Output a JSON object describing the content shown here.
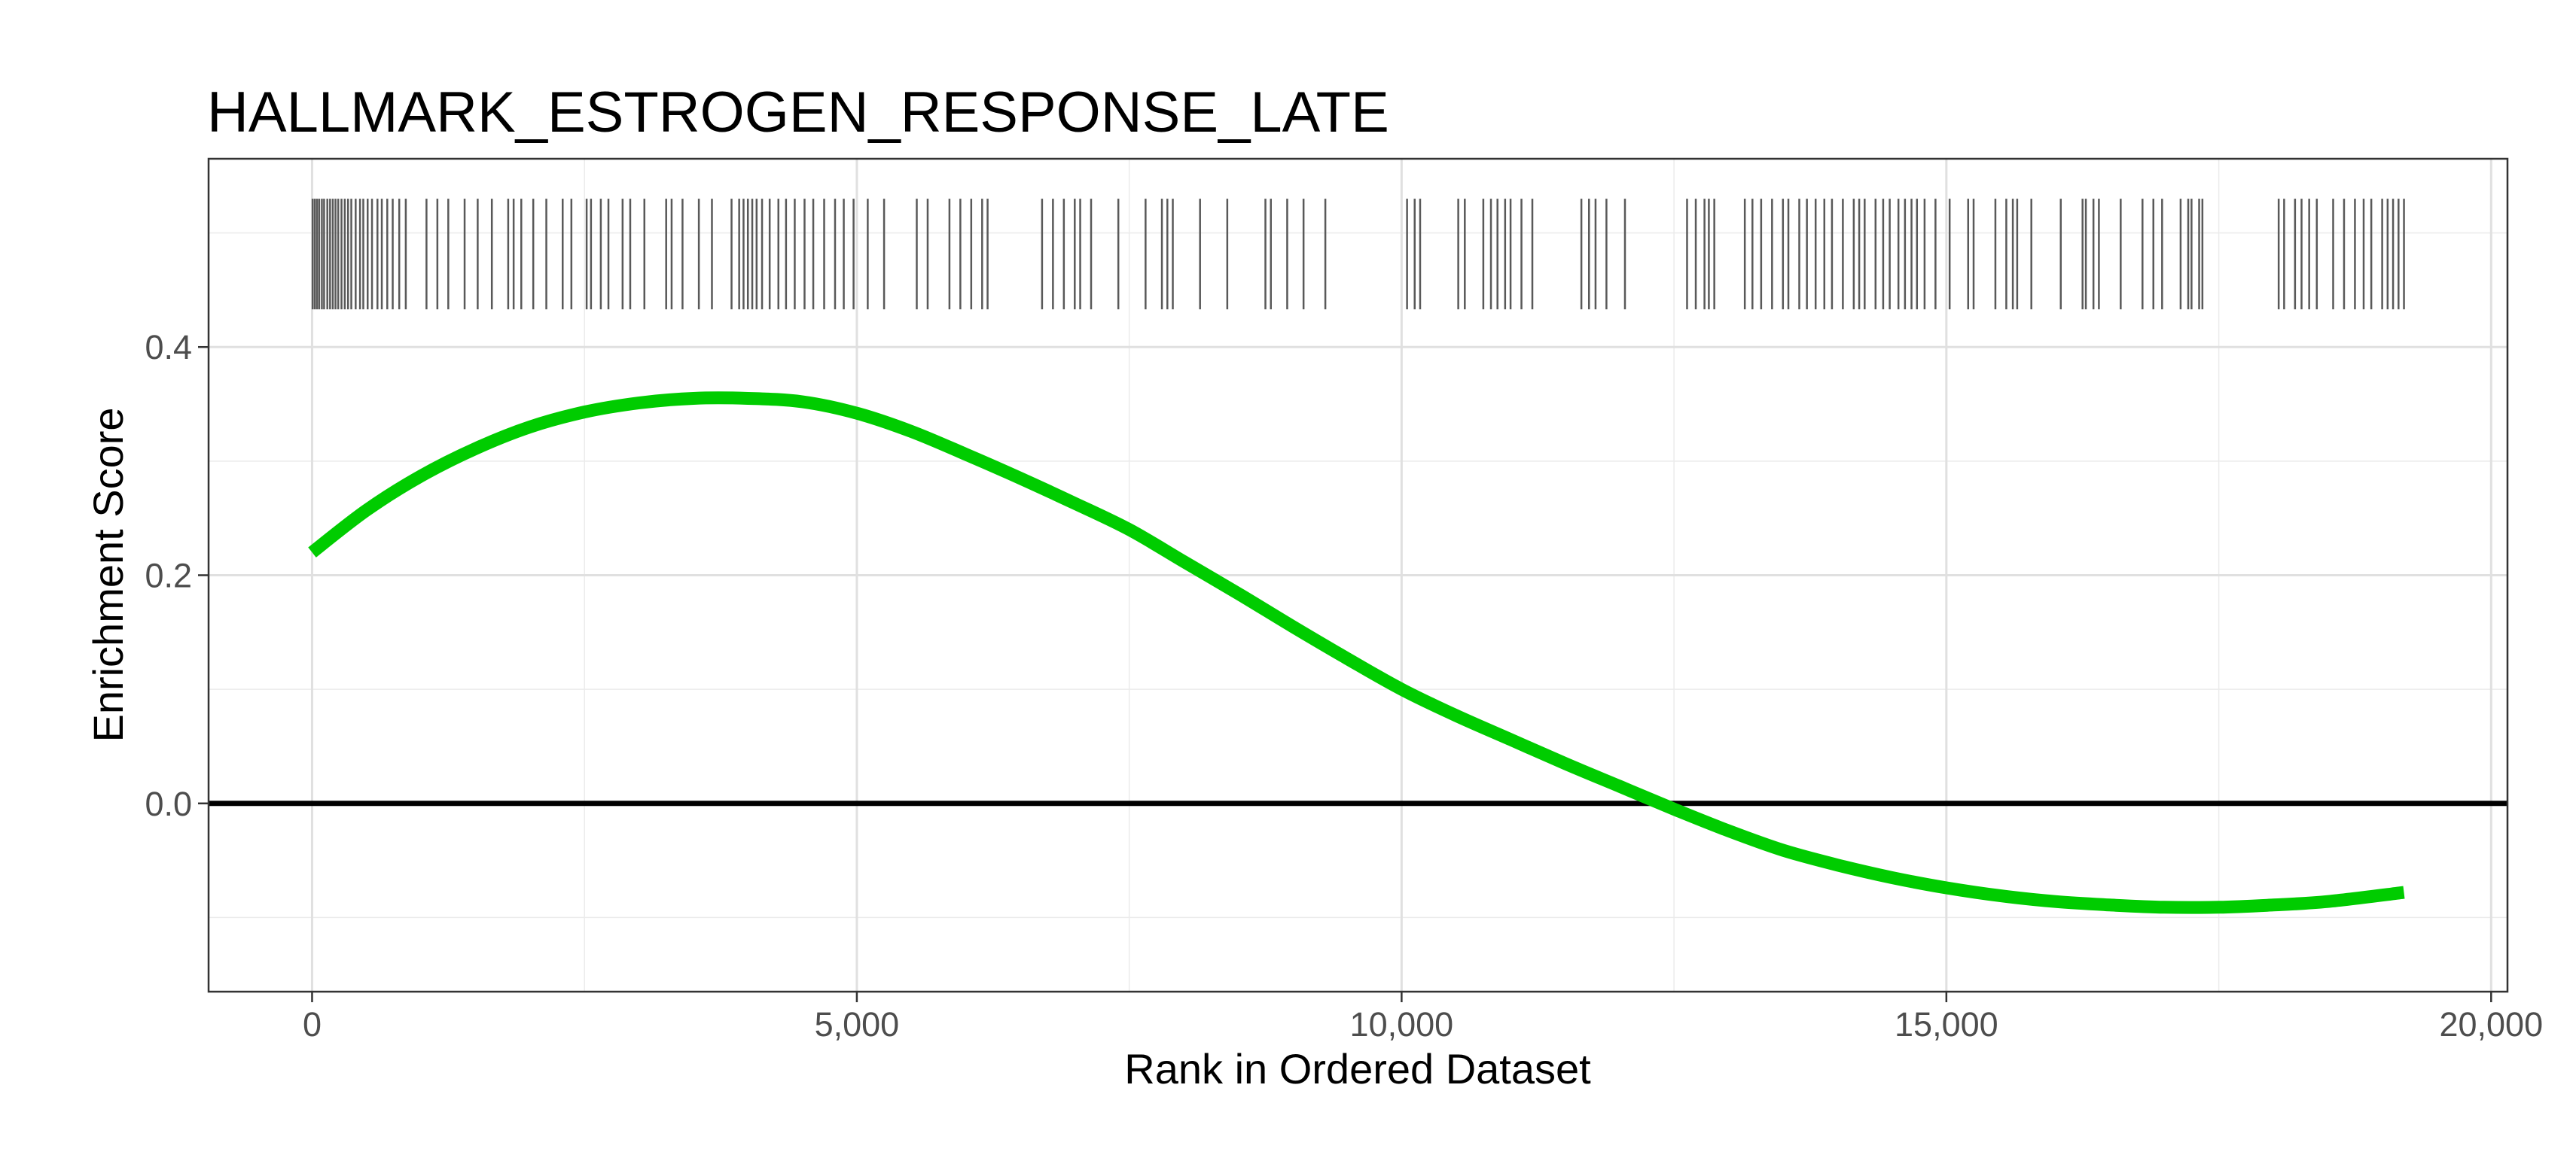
{
  "chart_data": {
    "type": "line",
    "title": "HALLMARK_ESTROGEN_RESPONSE_LATE",
    "xlabel": "Rank in Ordered Dataset",
    "ylabel": "Enrichment Score",
    "xlim": [
      -950,
      20150
    ],
    "ylim": [
      -0.165,
      0.565
    ],
    "x_ticks": [
      0,
      5000,
      10000,
      15000,
      20000
    ],
    "x_tick_labels": [
      "0",
      "5,000",
      "10,000",
      "15,000",
      "20,000"
    ],
    "y_ticks": [
      0.0,
      0.2,
      0.4
    ],
    "y_tick_labels": [
      "0.0",
      "0.2",
      "0.4"
    ],
    "x_minor_ticks": [
      2500,
      7500,
      12500,
      17500
    ],
    "y_minor_ticks": [
      -0.1,
      0.1,
      0.3,
      0.5
    ],
    "grid": true,
    "legend": "none",
    "reference_line_y": 0.0,
    "rug_ymin": 0.433,
    "rug_ymax": 0.53,
    "series": [
      {
        "color": "#00cc00",
        "x": [
          0,
          500,
          1000,
          1500,
          2000,
          2500,
          3000,
          3500,
          4000,
          4500,
          5000,
          5500,
          6000,
          6500,
          7000,
          7500,
          8000,
          8500,
          9000,
          9500,
          10000,
          10500,
          11000,
          11500,
          12000,
          12500,
          13000,
          13500,
          14000,
          14500,
          15000,
          15500,
          16000,
          16500,
          17000,
          17500,
          18000,
          18500,
          19200
        ],
        "values": [
          0.22,
          0.257,
          0.287,
          0.311,
          0.33,
          0.343,
          0.351,
          0.355,
          0.355,
          0.352,
          0.342,
          0.326,
          0.306,
          0.285,
          0.263,
          0.24,
          0.212,
          0.184,
          0.155,
          0.127,
          0.1,
          0.077,
          0.056,
          0.035,
          0.015,
          -0.005,
          -0.024,
          -0.041,
          -0.054,
          -0.065,
          -0.074,
          -0.081,
          -0.086,
          -0.089,
          -0.091,
          -0.091,
          -0.089,
          -0.086,
          -0.078
        ]
      }
    ],
    "rug_positions": [
      5,
      25,
      45,
      65,
      90,
      110,
      140,
      165,
      190,
      215,
      240,
      270,
      300,
      330,
      360,
      400,
      440,
      470,
      510,
      550,
      600,
      640,
      690,
      740,
      800,
      860,
      1050,
      1150,
      1250,
      1400,
      1520,
      1650,
      1800,
      1850,
      1920,
      2030,
      2150,
      2300,
      2380,
      2520,
      2560,
      2650,
      2720,
      2850,
      2920,
      3050,
      3250,
      3300,
      3400,
      3550,
      3670,
      3850,
      3920,
      3960,
      4000,
      4040,
      4080,
      4130,
      4200,
      4280,
      4350,
      4430,
      4520,
      4600,
      4700,
      4800,
      4880,
      4970,
      5100,
      5250,
      5550,
      5650,
      5850,
      5950,
      6050,
      6150,
      6200,
      6700,
      6800,
      6900,
      7000,
      7050,
      7150,
      7400,
      7650,
      7800,
      7850,
      7900,
      8150,
      8400,
      8750,
      8800,
      8950,
      9100,
      9300,
      10050,
      10120,
      10170,
      10520,
      10580,
      10750,
      10820,
      10880,
      10950,
      11000,
      11100,
      11200,
      11650,
      11720,
      11780,
      11880,
      12050,
      12620,
      12700,
      12780,
      12820,
      12870,
      13150,
      13220,
      13300,
      13400,
      13500,
      13550,
      13650,
      13720,
      13800,
      13880,
      13950,
      14050,
      14150,
      14200,
      14250,
      14350,
      14420,
      14480,
      14560,
      14620,
      14680,
      14730,
      14800,
      14900,
      15030,
      15200,
      15250,
      15450,
      15550,
      15610,
      15650,
      15780,
      16050,
      16250,
      16280,
      16350,
      16400,
      16600,
      16800,
      16900,
      16980,
      17150,
      17220,
      17250,
      17320,
      17350,
      18050,
      18100,
      18200,
      18260,
      18330,
      18400,
      18550,
      18650,
      18750,
      18830,
      18900,
      19000,
      19050,
      19100,
      19150,
      19200
    ]
  }
}
